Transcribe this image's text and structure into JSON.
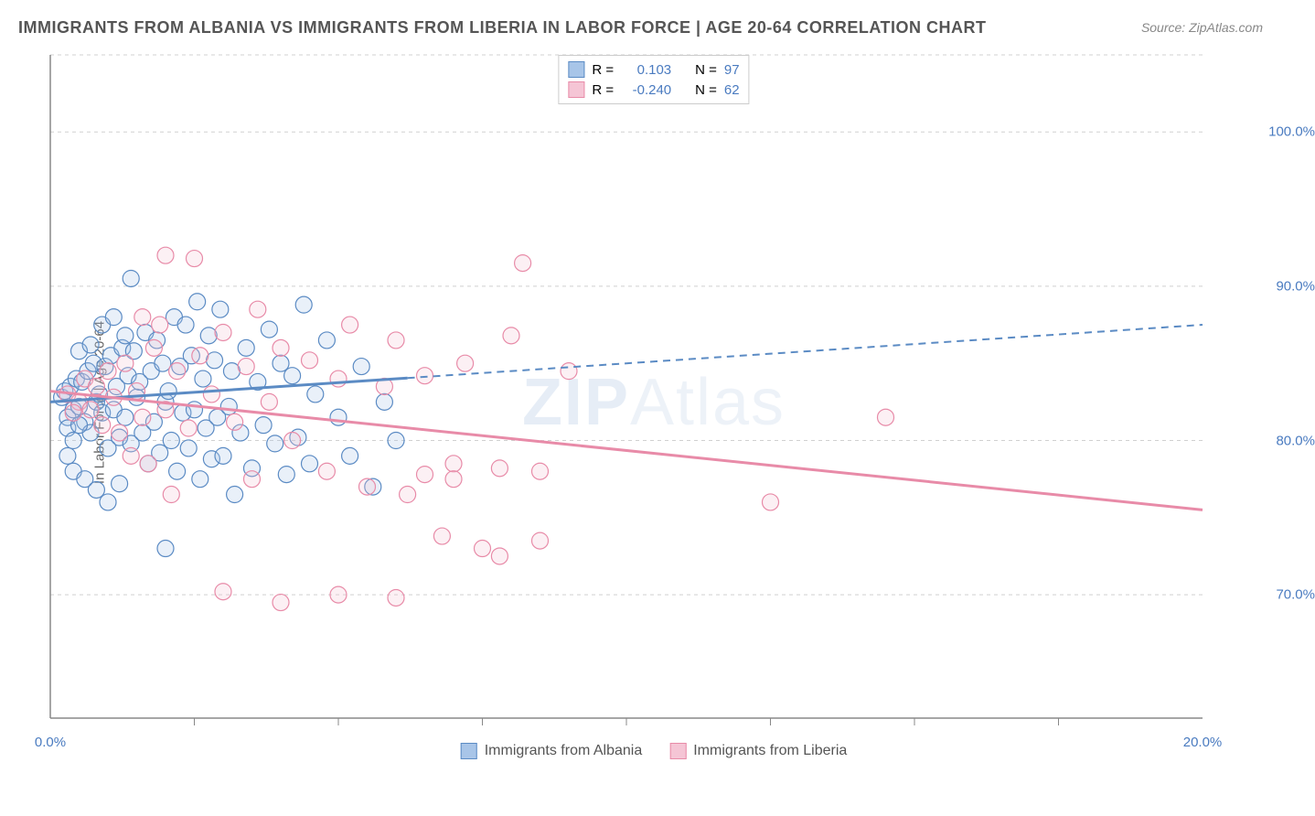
{
  "title": "IMMIGRANTS FROM ALBANIA VS IMMIGRANTS FROM LIBERIA IN LABOR FORCE | AGE 20-64 CORRELATION CHART",
  "source": "Source: ZipAtlas.com",
  "watermark_a": "ZIP",
  "watermark_b": "Atlas",
  "y_axis_label": "In Labor Force | Age 20-64",
  "chart": {
    "type": "scatter-with-regression",
    "xlim": [
      0,
      20
    ],
    "ylim": [
      62,
      105
    ],
    "xtick_positions": [
      0,
      20
    ],
    "xtick_labels": [
      "0.0%",
      "20.0%"
    ],
    "xtick_minor": [
      2.5,
      5,
      7.5,
      10,
      12.5,
      15,
      17.5
    ],
    "ytick_positions": [
      70,
      80,
      90,
      100
    ],
    "ytick_labels": [
      "70.0%",
      "80.0%",
      "90.0%",
      "100.0%"
    ],
    "background_color": "#ffffff",
    "gridline_color": "#d0d0d0",
    "axis_color": "#888888",
    "marker_radius": 9,
    "marker_stroke_width": 1.2,
    "marker_fill_opacity": 0.25,
    "series": [
      {
        "name": "Immigrants from Albania",
        "color_stroke": "#5b8bc4",
        "color_fill": "#a8c5e8",
        "R": "0.103",
        "N": "97",
        "regression": {
          "x0": 0,
          "y0": 82.5,
          "x1": 20,
          "y1": 87.5,
          "solid_until_x": 6.2
        },
        "points": [
          [
            0.2,
            82.8
          ],
          [
            0.3,
            81.5
          ],
          [
            0.25,
            83.2
          ],
          [
            0.4,
            82.0
          ],
          [
            0.35,
            83.5
          ],
          [
            0.3,
            80.8
          ],
          [
            0.5,
            82.2
          ],
          [
            0.45,
            84.0
          ],
          [
            0.6,
            81.2
          ],
          [
            0.55,
            83.8
          ],
          [
            0.7,
            80.5
          ],
          [
            0.65,
            84.5
          ],
          [
            0.8,
            82.5
          ],
          [
            0.75,
            85.0
          ],
          [
            0.9,
            81.8
          ],
          [
            0.85,
            83.0
          ],
          [
            1.0,
            79.5
          ],
          [
            0.95,
            84.8
          ],
          [
            1.1,
            82.0
          ],
          [
            1.05,
            85.5
          ],
          [
            1.2,
            80.2
          ],
          [
            1.15,
            83.5
          ],
          [
            1.3,
            81.5
          ],
          [
            1.25,
            86.0
          ],
          [
            1.4,
            79.8
          ],
          [
            1.35,
            84.2
          ],
          [
            1.5,
            82.8
          ],
          [
            1.45,
            85.8
          ],
          [
            1.6,
            80.5
          ],
          [
            1.55,
            83.8
          ],
          [
            1.7,
            78.5
          ],
          [
            1.65,
            87.0
          ],
          [
            1.8,
            81.2
          ],
          [
            1.75,
            84.5
          ],
          [
            1.9,
            79.2
          ],
          [
            1.85,
            86.5
          ],
          [
            2.0,
            82.5
          ],
          [
            1.95,
            85.0
          ],
          [
            2.1,
            80.0
          ],
          [
            2.05,
            83.2
          ],
          [
            2.2,
            78.0
          ],
          [
            2.15,
            88.0
          ],
          [
            2.3,
            81.8
          ],
          [
            2.25,
            84.8
          ],
          [
            2.4,
            79.5
          ],
          [
            2.35,
            87.5
          ],
          [
            2.5,
            82.0
          ],
          [
            2.45,
            85.5
          ],
          [
            2.6,
            77.5
          ],
          [
            2.55,
            89.0
          ],
          [
            2.7,
            80.8
          ],
          [
            2.65,
            84.0
          ],
          [
            2.8,
            78.8
          ],
          [
            2.75,
            86.8
          ],
          [
            2.9,
            81.5
          ],
          [
            2.85,
            85.2
          ],
          [
            3.0,
            79.0
          ],
          [
            2.95,
            88.5
          ],
          [
            3.1,
            82.2
          ],
          [
            3.15,
            84.5
          ],
          [
            3.2,
            76.5
          ],
          [
            1.4,
            90.5
          ],
          [
            3.3,
            80.5
          ],
          [
            3.4,
            86.0
          ],
          [
            3.5,
            78.2
          ],
          [
            3.6,
            83.8
          ],
          [
            3.7,
            81.0
          ],
          [
            3.8,
            87.2
          ],
          [
            3.9,
            79.8
          ],
          [
            4.0,
            85.0
          ],
          [
            4.1,
            77.8
          ],
          [
            4.2,
            84.2
          ],
          [
            4.3,
            80.2
          ],
          [
            4.4,
            88.8
          ],
          [
            4.5,
            78.5
          ],
          [
            4.6,
            83.0
          ],
          [
            4.8,
            86.5
          ],
          [
            5.0,
            81.5
          ],
          [
            5.2,
            79.0
          ],
          [
            5.4,
            84.8
          ],
          [
            5.6,
            77.0
          ],
          [
            5.8,
            82.5
          ],
          [
            6.0,
            80.0
          ],
          [
            0.4,
            78.0
          ],
          [
            0.6,
            77.5
          ],
          [
            0.8,
            76.8
          ],
          [
            1.0,
            76.0
          ],
          [
            1.2,
            77.2
          ],
          [
            0.5,
            85.8
          ],
          [
            0.7,
            86.2
          ],
          [
            0.9,
            87.5
          ],
          [
            1.1,
            88.0
          ],
          [
            1.3,
            86.8
          ],
          [
            2.0,
            73.0
          ],
          [
            0.3,
            79.0
          ],
          [
            0.4,
            80.0
          ],
          [
            0.5,
            81.0
          ]
        ]
      },
      {
        "name": "Immigrants from Liberia",
        "color_stroke": "#e88ba8",
        "color_fill": "#f5c5d5",
        "R": "-0.240",
        "N": "62",
        "regression": {
          "x0": 0,
          "y0": 83.2,
          "x1": 20,
          "y1": 75.5,
          "solid_until_x": 20
        },
        "points": [
          [
            0.3,
            83.0
          ],
          [
            0.5,
            82.5
          ],
          [
            0.4,
            81.8
          ],
          [
            0.6,
            84.0
          ],
          [
            0.7,
            82.0
          ],
          [
            0.8,
            83.5
          ],
          [
            0.9,
            81.0
          ],
          [
            1.0,
            84.5
          ],
          [
            1.1,
            82.8
          ],
          [
            1.2,
            80.5
          ],
          [
            1.3,
            85.0
          ],
          [
            1.5,
            83.2
          ],
          [
            1.6,
            81.5
          ],
          [
            1.8,
            86.0
          ],
          [
            2.0,
            82.0
          ],
          [
            2.2,
            84.5
          ],
          [
            2.4,
            80.8
          ],
          [
            2.5,
            91.8
          ],
          [
            2.6,
            85.5
          ],
          [
            2.8,
            83.0
          ],
          [
            3.0,
            87.0
          ],
          [
            3.2,
            81.2
          ],
          [
            3.4,
            84.8
          ],
          [
            3.5,
            77.5
          ],
          [
            3.6,
            88.5
          ],
          [
            3.8,
            82.5
          ],
          [
            4.0,
            86.0
          ],
          [
            4.2,
            80.0
          ],
          [
            4.5,
            85.2
          ],
          [
            4.8,
            78.0
          ],
          [
            5.0,
            84.0
          ],
          [
            5.2,
            87.5
          ],
          [
            5.5,
            77.0
          ],
          [
            5.8,
            83.5
          ],
          [
            6.0,
            86.5
          ],
          [
            6.2,
            76.5
          ],
          [
            6.5,
            84.2
          ],
          [
            6.8,
            73.8
          ],
          [
            7.0,
            78.5
          ],
          [
            7.2,
            85.0
          ],
          [
            7.5,
            73.0
          ],
          [
            7.8,
            78.2
          ],
          [
            8.0,
            86.8
          ],
          [
            8.2,
            91.5
          ],
          [
            8.5,
            78.0
          ],
          [
            5.0,
            70.0
          ],
          [
            3.0,
            70.2
          ],
          [
            2.0,
            92.0
          ],
          [
            4.0,
            69.5
          ],
          [
            6.0,
            69.8
          ],
          [
            6.5,
            77.8
          ],
          [
            7.0,
            77.5
          ],
          [
            7.8,
            72.5
          ],
          [
            8.5,
            73.5
          ],
          [
            9.0,
            84.5
          ],
          [
            12.5,
            76.0
          ],
          [
            14.5,
            81.5
          ],
          [
            1.4,
            79.0
          ],
          [
            1.7,
            78.5
          ],
          [
            2.1,
            76.5
          ],
          [
            1.9,
            87.5
          ],
          [
            1.6,
            88.0
          ]
        ]
      }
    ],
    "legend_top": {
      "r_label": "R =",
      "n_label": "N ="
    },
    "bottom_legend": [
      "Immigrants from Albania",
      "Immigrants from Liberia"
    ]
  }
}
